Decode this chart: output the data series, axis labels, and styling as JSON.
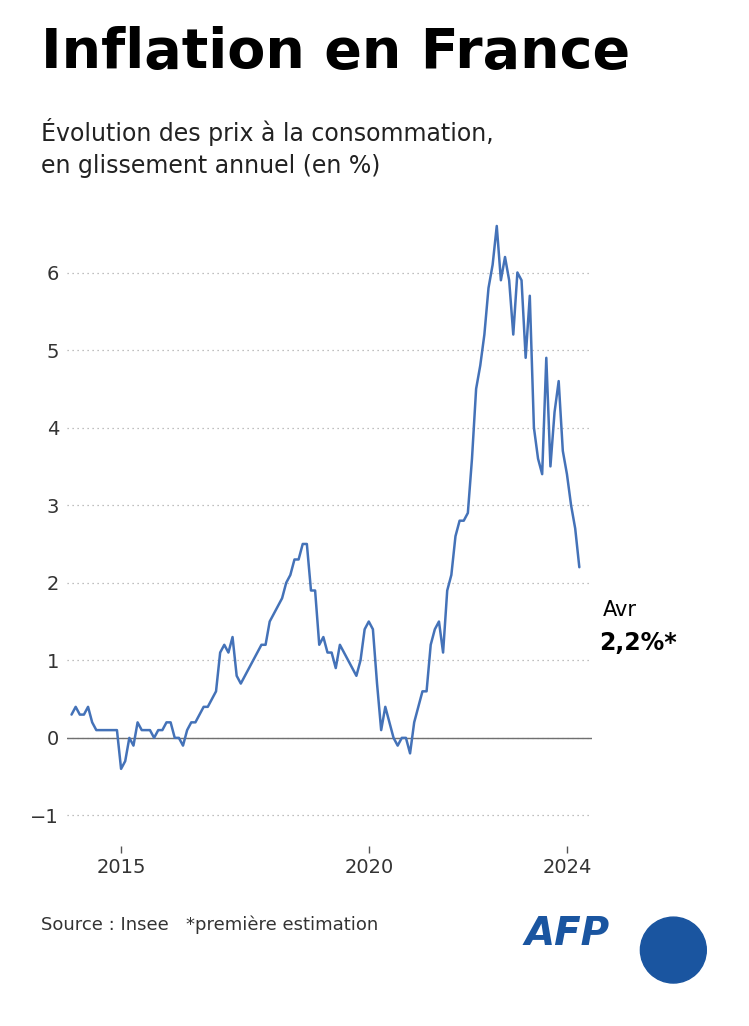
{
  "title": "Inflation en France",
  "subtitle_line1": "Évolution des prix à la consommation,",
  "subtitle_line2": "en glissement annuel (en %)",
  "source_text": "Source : Insee   *première estimation",
  "afp_text": "AFP",
  "annotation_label": "Avr",
  "annotation_value": "2,2%*",
  "line_color": "#4472b8",
  "zero_line_color": "#707070",
  "afp_blue": "#1a55a0",
  "background_color": "#ffffff",
  "ylim": [
    -1.4,
    7.0
  ],
  "yticks": [
    -1,
    0,
    1,
    2,
    3,
    4,
    5,
    6
  ],
  "xtick_positions": [
    12,
    72,
    120
  ],
  "xtick_labels": [
    "2015",
    "2020",
    "2024"
  ],
  "values": [
    0.3,
    0.4,
    0.3,
    0.3,
    0.4,
    0.2,
    0.1,
    0.1,
    0.1,
    0.1,
    0.1,
    0.1,
    -0.4,
    -0.3,
    0.0,
    -0.1,
    0.2,
    0.1,
    0.1,
    0.1,
    0.0,
    0.1,
    0.1,
    0.2,
    0.2,
    0.0,
    0.0,
    -0.1,
    0.1,
    0.2,
    0.2,
    0.3,
    0.4,
    0.4,
    0.5,
    0.6,
    1.1,
    1.2,
    1.1,
    1.3,
    0.8,
    0.7,
    0.8,
    0.9,
    1.0,
    1.1,
    1.2,
    1.2,
    1.5,
    1.6,
    1.7,
    1.8,
    2.0,
    2.1,
    2.3,
    2.3,
    2.5,
    2.5,
    1.9,
    1.9,
    1.2,
    1.3,
    1.1,
    1.1,
    0.9,
    1.2,
    1.1,
    1.0,
    0.9,
    0.8,
    1.0,
    1.4,
    1.5,
    1.4,
    0.7,
    0.1,
    0.4,
    0.2,
    0.0,
    -0.1,
    0.0,
    0.0,
    -0.2,
    0.2,
    0.4,
    0.6,
    0.6,
    1.2,
    1.4,
    1.5,
    1.1,
    1.9,
    2.1,
    2.6,
    2.8,
    2.8,
    2.9,
    3.6,
    4.5,
    4.8,
    5.2,
    5.8,
    6.1,
    6.6,
    5.9,
    6.2,
    5.9,
    5.2,
    6.0,
    5.9,
    4.9,
    5.7,
    4.0,
    3.6,
    3.4,
    4.9,
    3.5,
    4.2,
    4.6,
    3.7,
    3.4,
    3.0,
    2.7,
    2.2
  ]
}
